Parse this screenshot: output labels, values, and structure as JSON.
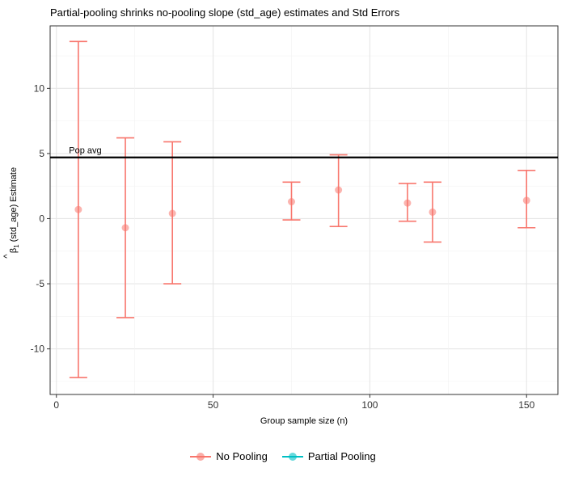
{
  "chart_data": {
    "type": "scatter",
    "title": "Partial-pooling shrinks no-pooling slope (std_age) estimates and Std Errors",
    "xlabel": "Group sample size (n)",
    "ylabel_symbol": "β",
    "ylabel_hat": "^",
    "ylabel_sub": "1",
    "ylabel_rest": " (std_age) Estimate",
    "xlim": [
      -2,
      160
    ],
    "ylim": [
      -13.5,
      14.8
    ],
    "x_ticks": [
      0,
      50,
      100,
      150
    ],
    "x_tick_labels": [
      "0",
      "50",
      "100",
      "150"
    ],
    "y_ticks": [
      -10,
      -5,
      0,
      5,
      10
    ],
    "y_tick_labels": [
      "-10",
      "-5",
      "0",
      "5",
      "10"
    ],
    "grid": true,
    "legend_position": "bottom",
    "reference_line": {
      "y": 4.7,
      "label": "Pop avg"
    },
    "series": [
      {
        "name": "No Pooling",
        "color": "#F8766D",
        "points": [
          {
            "x": 7,
            "y": 0.7,
            "ymin": -12.2,
            "ymax": 13.6
          },
          {
            "x": 22,
            "y": -0.7,
            "ymin": -7.6,
            "ymax": 6.2
          },
          {
            "x": 37,
            "y": 0.4,
            "ymin": -5.0,
            "ymax": 5.9
          },
          {
            "x": 75,
            "y": 1.3,
            "ymin": -0.1,
            "ymax": 2.8
          },
          {
            "x": 90,
            "y": 2.2,
            "ymin": -0.6,
            "ymax": 4.9
          },
          {
            "x": 112,
            "y": 1.2,
            "ymin": -0.2,
            "ymax": 2.7
          },
          {
            "x": 120,
            "y": 0.5,
            "ymin": -1.8,
            "ymax": 2.8
          },
          {
            "x": 150,
            "y": 1.4,
            "ymin": -0.7,
            "ymax": 3.7
          }
        ]
      },
      {
        "name": "Partial Pooling",
        "color": "#00BFC4",
        "points": []
      }
    ]
  }
}
